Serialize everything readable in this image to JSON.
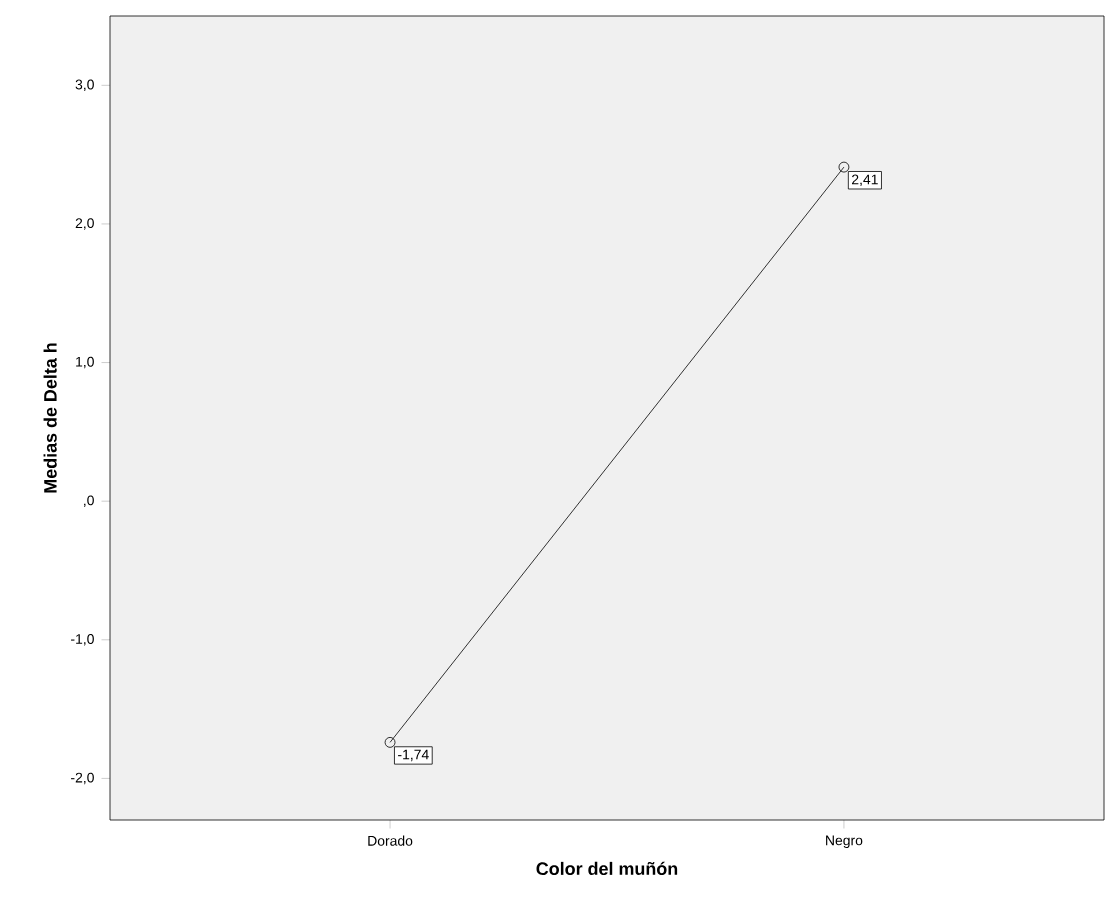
{
  "chart_data": {
    "type": "line",
    "xlabel": "Color del muñón",
    "ylabel": "Medias de Delta h",
    "categories": [
      "Dorado",
      "Negro"
    ],
    "values": [
      -1.74,
      2.41
    ],
    "value_labels": [
      "-1,74",
      "2,41"
    ],
    "color": "#000000",
    "marker": "circle",
    "ylim": [
      -2.3,
      3.5
    ],
    "yticks": [
      {
        "value": -2,
        "label": "-2,0"
      },
      {
        "value": -1,
        "label": "-1,0"
      },
      {
        "value": 0,
        "label": ",0"
      },
      {
        "value": 1,
        "label": "1,0"
      },
      {
        "value": 2,
        "label": "2,0"
      },
      {
        "value": 3,
        "label": "3,0"
      }
    ],
    "grid": false
  }
}
